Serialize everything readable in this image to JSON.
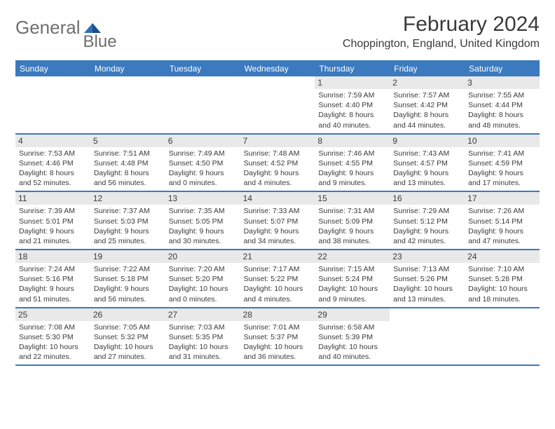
{
  "logo": {
    "text1": "General",
    "text2": "Blue"
  },
  "title": "February 2024",
  "location": "Choppington, England, United Kingdom",
  "colors": {
    "header_blue": "#3b7abf",
    "daynum_bg": "#e9e9e9",
    "text": "#3a3a3a",
    "logo_gray": "#6e6e6e"
  },
  "day_headers": [
    "Sunday",
    "Monday",
    "Tuesday",
    "Wednesday",
    "Thursday",
    "Friday",
    "Saturday"
  ],
  "weeks": [
    [
      null,
      null,
      null,
      null,
      {
        "n": "1",
        "sunrise": "7:59 AM",
        "sunset": "4:40 PM",
        "daylight_h": "8",
        "daylight_m": "40"
      },
      {
        "n": "2",
        "sunrise": "7:57 AM",
        "sunset": "4:42 PM",
        "daylight_h": "8",
        "daylight_m": "44"
      },
      {
        "n": "3",
        "sunrise": "7:55 AM",
        "sunset": "4:44 PM",
        "daylight_h": "8",
        "daylight_m": "48"
      }
    ],
    [
      {
        "n": "4",
        "sunrise": "7:53 AM",
        "sunset": "4:46 PM",
        "daylight_h": "8",
        "daylight_m": "52"
      },
      {
        "n": "5",
        "sunrise": "7:51 AM",
        "sunset": "4:48 PM",
        "daylight_h": "8",
        "daylight_m": "56"
      },
      {
        "n": "6",
        "sunrise": "7:49 AM",
        "sunset": "4:50 PM",
        "daylight_h": "9",
        "daylight_m": "0"
      },
      {
        "n": "7",
        "sunrise": "7:48 AM",
        "sunset": "4:52 PM",
        "daylight_h": "9",
        "daylight_m": "4"
      },
      {
        "n": "8",
        "sunrise": "7:46 AM",
        "sunset": "4:55 PM",
        "daylight_h": "9",
        "daylight_m": "9"
      },
      {
        "n": "9",
        "sunrise": "7:43 AM",
        "sunset": "4:57 PM",
        "daylight_h": "9",
        "daylight_m": "13"
      },
      {
        "n": "10",
        "sunrise": "7:41 AM",
        "sunset": "4:59 PM",
        "daylight_h": "9",
        "daylight_m": "17"
      }
    ],
    [
      {
        "n": "11",
        "sunrise": "7:39 AM",
        "sunset": "5:01 PM",
        "daylight_h": "9",
        "daylight_m": "21"
      },
      {
        "n": "12",
        "sunrise": "7:37 AM",
        "sunset": "5:03 PM",
        "daylight_h": "9",
        "daylight_m": "25"
      },
      {
        "n": "13",
        "sunrise": "7:35 AM",
        "sunset": "5:05 PM",
        "daylight_h": "9",
        "daylight_m": "30"
      },
      {
        "n": "14",
        "sunrise": "7:33 AM",
        "sunset": "5:07 PM",
        "daylight_h": "9",
        "daylight_m": "34"
      },
      {
        "n": "15",
        "sunrise": "7:31 AM",
        "sunset": "5:09 PM",
        "daylight_h": "9",
        "daylight_m": "38"
      },
      {
        "n": "16",
        "sunrise": "7:29 AM",
        "sunset": "5:12 PM",
        "daylight_h": "9",
        "daylight_m": "42"
      },
      {
        "n": "17",
        "sunrise": "7:26 AM",
        "sunset": "5:14 PM",
        "daylight_h": "9",
        "daylight_m": "47"
      }
    ],
    [
      {
        "n": "18",
        "sunrise": "7:24 AM",
        "sunset": "5:16 PM",
        "daylight_h": "9",
        "daylight_m": "51"
      },
      {
        "n": "19",
        "sunrise": "7:22 AM",
        "sunset": "5:18 PM",
        "daylight_h": "9",
        "daylight_m": "56"
      },
      {
        "n": "20",
        "sunrise": "7:20 AM",
        "sunset": "5:20 PM",
        "daylight_h": "10",
        "daylight_m": "0"
      },
      {
        "n": "21",
        "sunrise": "7:17 AM",
        "sunset": "5:22 PM",
        "daylight_h": "10",
        "daylight_m": "4"
      },
      {
        "n": "22",
        "sunrise": "7:15 AM",
        "sunset": "5:24 PM",
        "daylight_h": "10",
        "daylight_m": "9"
      },
      {
        "n": "23",
        "sunrise": "7:13 AM",
        "sunset": "5:26 PM",
        "daylight_h": "10",
        "daylight_m": "13"
      },
      {
        "n": "24",
        "sunrise": "7:10 AM",
        "sunset": "5:28 PM",
        "daylight_h": "10",
        "daylight_m": "18"
      }
    ],
    [
      {
        "n": "25",
        "sunrise": "7:08 AM",
        "sunset": "5:30 PM",
        "daylight_h": "10",
        "daylight_m": "22"
      },
      {
        "n": "26",
        "sunrise": "7:05 AM",
        "sunset": "5:32 PM",
        "daylight_h": "10",
        "daylight_m": "27"
      },
      {
        "n": "27",
        "sunrise": "7:03 AM",
        "sunset": "5:35 PM",
        "daylight_h": "10",
        "daylight_m": "31"
      },
      {
        "n": "28",
        "sunrise": "7:01 AM",
        "sunset": "5:37 PM",
        "daylight_h": "10",
        "daylight_m": "36"
      },
      {
        "n": "29",
        "sunrise": "6:58 AM",
        "sunset": "5:39 PM",
        "daylight_h": "10",
        "daylight_m": "40"
      },
      null,
      null
    ]
  ],
  "labels": {
    "sunrise_prefix": "Sunrise: ",
    "sunset_prefix": "Sunset: ",
    "daylight_prefix": "Daylight: ",
    "hours_word": " hours",
    "and_word": "and ",
    "minutes_word": " minutes."
  }
}
